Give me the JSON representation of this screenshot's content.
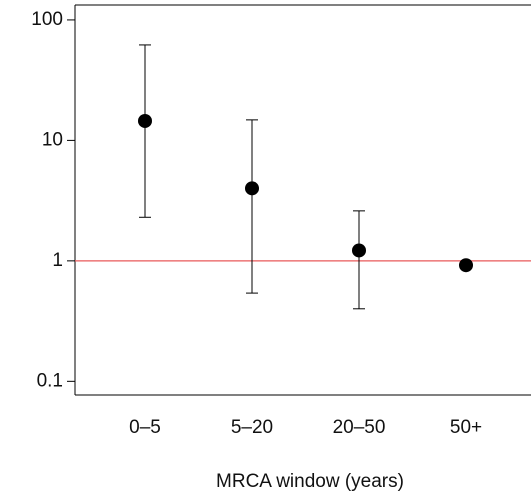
{
  "chart_data": {
    "type": "scatter",
    "x_label": "MRCA window (years)",
    "categories": [
      "0–5",
      "5–20",
      "20–50",
      "50+"
    ],
    "values": [
      14.5,
      4.0,
      1.22,
      0.92
    ],
    "lower": [
      2.3,
      0.54,
      0.4,
      null
    ],
    "upper": [
      62,
      14.8,
      2.6,
      null
    ],
    "color": "#000000",
    "log_scale": true,
    "ylim": [
      0.077,
      133
    ],
    "yticks": [
      100,
      10,
      1,
      0.1
    ],
    "reference_line": 1,
    "reference_color": "#e8585a"
  }
}
